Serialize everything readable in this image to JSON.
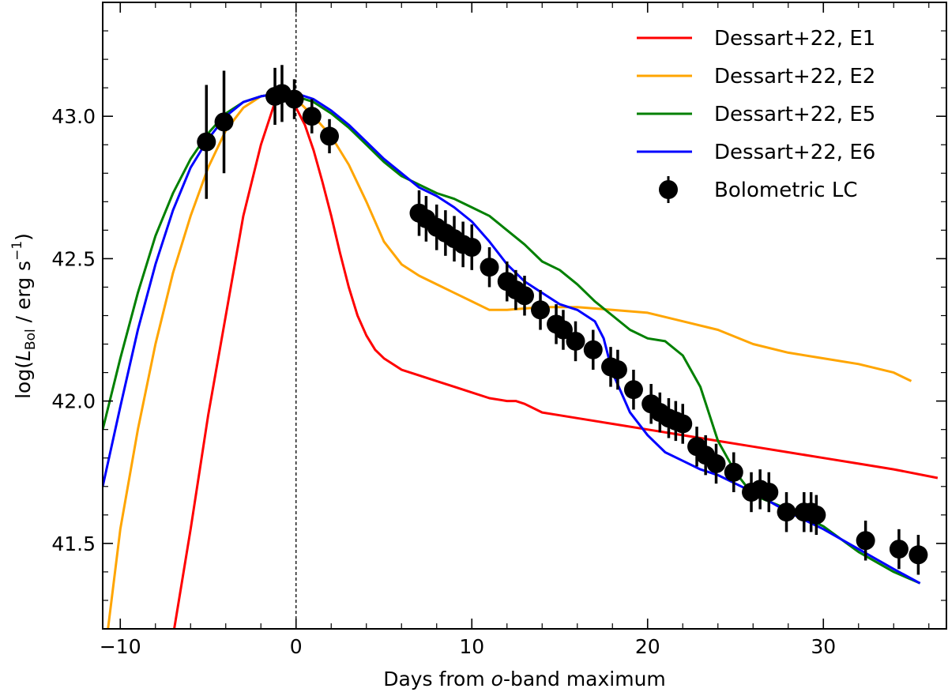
{
  "chart_data": {
    "type": "line",
    "xlabel_pre": "Days from ",
    "xlabel_italic": "o",
    "xlabel_post": "-band maximum",
    "ylabel": {
      "prefix": "log(",
      "symbol": "L",
      "subscript": "Bol",
      "unit": " / erg s",
      "exponent": "−1",
      "suffix": ")"
    },
    "xlim": [
      -11,
      37
    ],
    "ylim": [
      41.2,
      43.4
    ],
    "xticks": [
      -10,
      0,
      10,
      20,
      30
    ],
    "xtick_labels": [
      "−10",
      "0",
      "10",
      "20",
      "30"
    ],
    "yticks": [
      41.5,
      42.0,
      42.5,
      43.0
    ],
    "ytick_labels": [
      "41.5",
      "42.0",
      "42.5",
      "43.0"
    ],
    "reference_line_x": 0,
    "legend_position": "upper-right",
    "series": [
      {
        "name": "Dessart+22, E1",
        "color": "#ff0000",
        "x": [
          -7.2,
          -6,
          -5,
          -4,
          -3,
          -2,
          -1.2,
          -0.5,
          0,
          0.5,
          1,
          1.5,
          2,
          2.5,
          3,
          3.5,
          4,
          4.5,
          5,
          5.5,
          6,
          7,
          8,
          9,
          10,
          11,
          12,
          12.5,
          13,
          14,
          15,
          16,
          18,
          20,
          22,
          24,
          26,
          28,
          30,
          32,
          34,
          36.5
        ],
        "y": [
          41.1,
          41.55,
          41.95,
          42.3,
          42.65,
          42.9,
          43.05,
          43.07,
          43.03,
          42.97,
          42.88,
          42.77,
          42.65,
          42.52,
          42.4,
          42.3,
          42.23,
          42.18,
          42.15,
          42.13,
          42.11,
          42.09,
          42.07,
          42.05,
          42.03,
          42.01,
          42.0,
          42.0,
          41.99,
          41.96,
          41.95,
          41.94,
          41.92,
          41.9,
          41.88,
          41.86,
          41.84,
          41.82,
          41.8,
          41.78,
          41.76,
          41.73
        ]
      },
      {
        "name": "Dessart+22, E2",
        "color": "#ffa500",
        "x": [
          -11,
          -10,
          -9,
          -8,
          -7,
          -6,
          -5,
          -4,
          -3,
          -2,
          -1,
          0,
          1,
          2,
          3,
          4,
          5,
          6,
          7,
          8,
          9,
          10,
          11,
          12,
          14,
          16,
          18,
          20,
          22,
          24,
          26,
          28,
          30,
          32,
          34,
          35
        ],
        "y": [
          41.05,
          41.55,
          41.9,
          42.2,
          42.45,
          42.65,
          42.82,
          42.95,
          43.03,
          43.07,
          43.08,
          43.06,
          43.0,
          42.93,
          42.83,
          42.7,
          42.56,
          42.48,
          42.44,
          42.41,
          42.38,
          42.35,
          42.32,
          42.32,
          42.33,
          42.33,
          42.32,
          42.31,
          42.28,
          42.25,
          42.2,
          42.17,
          42.15,
          42.13,
          42.1,
          42.07
        ]
      },
      {
        "name": "Dessart+22, E5",
        "color": "#008000",
        "x": [
          -11,
          -10,
          -9,
          -8,
          -7,
          -6,
          -5,
          -4,
          -3,
          -2,
          -1,
          0,
          1,
          2,
          3,
          4,
          5,
          6,
          7,
          8,
          9,
          10,
          11,
          12,
          13,
          14,
          15,
          16,
          17,
          18,
          19,
          20,
          21,
          22,
          23,
          24,
          25,
          26,
          28,
          30,
          32,
          34,
          35.5
        ],
        "y": [
          41.9,
          42.15,
          42.38,
          42.58,
          42.73,
          42.85,
          42.94,
          43.01,
          43.05,
          43.07,
          43.08,
          43.07,
          43.05,
          43.01,
          42.96,
          42.9,
          42.84,
          42.79,
          42.76,
          42.73,
          42.71,
          42.68,
          42.65,
          42.6,
          42.55,
          42.49,
          42.46,
          42.41,
          42.35,
          42.3,
          42.25,
          42.22,
          42.21,
          42.16,
          42.05,
          41.86,
          41.75,
          41.67,
          41.62,
          41.56,
          41.47,
          41.4,
          41.36
        ]
      },
      {
        "name": "Dessart+22, E6",
        "color": "#0000ff",
        "x": [
          -11,
          -10,
          -9,
          -8,
          -7,
          -6,
          -5,
          -4,
          -3,
          -2,
          -1,
          0,
          1,
          2,
          3,
          4,
          5,
          6,
          7,
          8,
          9,
          10,
          11,
          12,
          13,
          14,
          15,
          16,
          17,
          17.5,
          18,
          19,
          20,
          21,
          22,
          23,
          24,
          25,
          26,
          28,
          30,
          32,
          34,
          35.5
        ],
        "y": [
          41.7,
          41.98,
          42.25,
          42.48,
          42.67,
          42.82,
          42.92,
          43.0,
          43.05,
          43.07,
          43.08,
          43.08,
          43.06,
          43.02,
          42.97,
          42.91,
          42.85,
          42.8,
          42.75,
          42.72,
          42.68,
          42.63,
          42.56,
          42.48,
          42.42,
          42.38,
          42.34,
          42.32,
          42.28,
          42.22,
          42.1,
          41.96,
          41.88,
          41.82,
          41.79,
          41.76,
          41.74,
          41.71,
          41.68,
          41.61,
          41.55,
          41.48,
          41.41,
          41.36
        ]
      }
    ],
    "points": {
      "name": "Bolometric LC",
      "color": "#000000",
      "data": [
        {
          "x": -5.1,
          "y": 42.91,
          "err": 0.2
        },
        {
          "x": -4.1,
          "y": 42.98,
          "err": 0.18
        },
        {
          "x": -1.2,
          "y": 43.07,
          "err": 0.1
        },
        {
          "x": -0.8,
          "y": 43.08,
          "err": 0.1
        },
        {
          "x": -0.1,
          "y": 43.06,
          "err": 0.07
        },
        {
          "x": 0.9,
          "y": 43.0,
          "err": 0.06
        },
        {
          "x": 1.9,
          "y": 42.93,
          "err": 0.06
        },
        {
          "x": 7.0,
          "y": 42.66,
          "err": 0.08
        },
        {
          "x": 7.4,
          "y": 42.64,
          "err": 0.08
        },
        {
          "x": 8.0,
          "y": 42.61,
          "err": 0.08
        },
        {
          "x": 8.5,
          "y": 42.59,
          "err": 0.08
        },
        {
          "x": 9.0,
          "y": 42.57,
          "err": 0.08
        },
        {
          "x": 9.5,
          "y": 42.55,
          "err": 0.08
        },
        {
          "x": 10.0,
          "y": 42.54,
          "err": 0.08
        },
        {
          "x": 11.0,
          "y": 42.47,
          "err": 0.07
        },
        {
          "x": 12.0,
          "y": 42.42,
          "err": 0.07
        },
        {
          "x": 12.5,
          "y": 42.39,
          "err": 0.07
        },
        {
          "x": 13.0,
          "y": 42.37,
          "err": 0.07
        },
        {
          "x": 13.9,
          "y": 42.32,
          "err": 0.07
        },
        {
          "x": 14.8,
          "y": 42.27,
          "err": 0.07
        },
        {
          "x": 15.2,
          "y": 42.25,
          "err": 0.07
        },
        {
          "x": 15.9,
          "y": 42.21,
          "err": 0.07
        },
        {
          "x": 16.9,
          "y": 42.18,
          "err": 0.07
        },
        {
          "x": 17.9,
          "y": 42.12,
          "err": 0.07
        },
        {
          "x": 18.3,
          "y": 42.11,
          "err": 0.07
        },
        {
          "x": 19.2,
          "y": 42.04,
          "err": 0.07
        },
        {
          "x": 20.2,
          "y": 41.99,
          "err": 0.07
        },
        {
          "x": 20.7,
          "y": 41.96,
          "err": 0.07
        },
        {
          "x": 21.2,
          "y": 41.94,
          "err": 0.07
        },
        {
          "x": 21.6,
          "y": 41.93,
          "err": 0.07
        },
        {
          "x": 22.0,
          "y": 41.92,
          "err": 0.07
        },
        {
          "x": 22.8,
          "y": 41.84,
          "err": 0.07
        },
        {
          "x": 23.3,
          "y": 41.81,
          "err": 0.07
        },
        {
          "x": 23.9,
          "y": 41.78,
          "err": 0.07
        },
        {
          "x": 24.9,
          "y": 41.75,
          "err": 0.07
        },
        {
          "x": 25.9,
          "y": 41.68,
          "err": 0.07
        },
        {
          "x": 26.4,
          "y": 41.69,
          "err": 0.07
        },
        {
          "x": 26.9,
          "y": 41.68,
          "err": 0.07
        },
        {
          "x": 27.9,
          "y": 41.61,
          "err": 0.07
        },
        {
          "x": 28.9,
          "y": 41.61,
          "err": 0.07
        },
        {
          "x": 29.3,
          "y": 41.61,
          "err": 0.07
        },
        {
          "x": 29.6,
          "y": 41.6,
          "err": 0.07
        },
        {
          "x": 32.4,
          "y": 41.51,
          "err": 0.07
        },
        {
          "x": 34.3,
          "y": 41.48,
          "err": 0.07
        },
        {
          "x": 35.4,
          "y": 41.46,
          "err": 0.07
        }
      ]
    },
    "grid": false,
    "title": ""
  }
}
